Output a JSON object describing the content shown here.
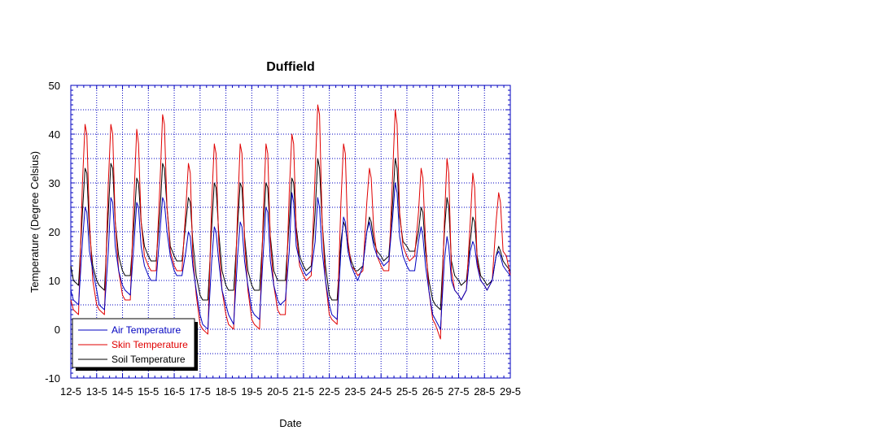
{
  "chart_data": {
    "type": "line",
    "title": "Duffield",
    "xlabel": "Date",
    "ylabel": "Temperature (Degree Celsius)",
    "ylim": [
      -10,
      50
    ],
    "yticks": [
      -10,
      0,
      10,
      20,
      30,
      40,
      50
    ],
    "xticks": [
      "12-5",
      "13-5",
      "14-5",
      "15-5",
      "16-5",
      "17-5",
      "18-5",
      "19-5",
      "20-5",
      "21-5",
      "22-5",
      "23-5",
      "24-5",
      "25-5",
      "26-5",
      "27-5",
      "28-5",
      "29-5"
    ],
    "grid": true,
    "legend_position": "bottom-left",
    "x_unit": "day index from 12-5 (0 = 12-5, 17 = 29-5)",
    "series": [
      {
        "name": "Air Temperature",
        "color": "#0000c0",
        "x": [
          0,
          0.1,
          0.3,
          0.45,
          0.55,
          0.62,
          0.72,
          0.85,
          1.0,
          1.1,
          1.3,
          1.45,
          1.55,
          1.62,
          1.72,
          1.85,
          2.0,
          2.1,
          2.3,
          2.45,
          2.55,
          2.62,
          2.72,
          2.85,
          3.0,
          3.1,
          3.3,
          3.45,
          3.55,
          3.62,
          3.72,
          3.85,
          4.0,
          4.1,
          4.3,
          4.45,
          4.55,
          4.62,
          4.72,
          4.85,
          5.0,
          5.1,
          5.3,
          5.45,
          5.55,
          5.62,
          5.72,
          5.85,
          6.0,
          6.1,
          6.3,
          6.45,
          6.55,
          6.62,
          6.72,
          6.85,
          7.0,
          7.1,
          7.3,
          7.45,
          7.55,
          7.62,
          7.72,
          7.85,
          8.0,
          8.1,
          8.3,
          8.45,
          8.55,
          8.62,
          8.72,
          8.85,
          9.0,
          9.1,
          9.3,
          9.45,
          9.55,
          9.62,
          9.72,
          9.85,
          10.0,
          10.1,
          10.3,
          10.45,
          10.55,
          10.62,
          10.72,
          10.85,
          11.0,
          11.1,
          11.3,
          11.45,
          11.55,
          11.62,
          11.72,
          11.85,
          12.0,
          12.1,
          12.3,
          12.45,
          12.55,
          12.62,
          12.72,
          12.85,
          13.0,
          13.1,
          13.3,
          13.45,
          13.55,
          13.62,
          13.72,
          13.85,
          14.0,
          14.1,
          14.3,
          14.45,
          14.55,
          14.62,
          14.72,
          14.85,
          15.0,
          15.1,
          15.3,
          15.45,
          15.55,
          15.62,
          15.72,
          15.85,
          16.0,
          16.1,
          16.3,
          16.45,
          16.55,
          16.62,
          16.72,
          16.85,
          17.0
        ],
        "y": [
          8,
          6,
          5,
          18,
          25,
          24,
          16,
          12,
          8,
          5,
          4,
          16,
          27,
          26,
          17,
          12,
          9,
          8,
          7,
          18,
          26,
          25,
          17,
          13,
          11,
          10,
          10,
          20,
          27,
          26,
          20,
          15,
          12,
          11,
          11,
          16,
          20,
          19,
          13,
          8,
          3,
          1,
          0,
          14,
          21,
          20,
          14,
          8,
          5,
          3,
          1,
          15,
          22,
          21,
          14,
          9,
          4,
          3,
          2,
          16,
          25,
          24,
          14,
          9,
          6,
          5,
          6,
          16,
          28,
          26,
          17,
          14,
          12,
          11,
          12,
          18,
          27,
          25,
          16,
          10,
          5,
          3,
          2,
          16,
          23,
          22,
          16,
          13,
          11,
          10,
          13,
          20,
          22,
          20,
          17,
          15,
          14,
          13,
          14,
          23,
          30,
          28,
          19,
          15,
          13,
          12,
          12,
          18,
          21,
          19,
          13,
          8,
          3,
          2,
          0,
          14,
          19,
          17,
          10,
          8,
          7,
          6,
          8,
          16,
          18,
          17,
          13,
          10,
          9,
          8,
          10,
          15,
          16,
          15,
          13,
          12,
          11
        ]
      },
      {
        "name": "Skin Temperature",
        "color": "#e00000",
        "x": [
          0,
          0.1,
          0.3,
          0.45,
          0.55,
          0.62,
          0.72,
          0.85,
          1.0,
          1.1,
          1.3,
          1.45,
          1.55,
          1.62,
          1.72,
          1.85,
          2.0,
          2.1,
          2.3,
          2.45,
          2.55,
          2.62,
          2.72,
          2.85,
          3.0,
          3.1,
          3.3,
          3.45,
          3.55,
          3.62,
          3.72,
          3.85,
          4.0,
          4.1,
          4.3,
          4.45,
          4.55,
          4.62,
          4.72,
          4.85,
          5.0,
          5.1,
          5.3,
          5.45,
          5.55,
          5.62,
          5.72,
          5.85,
          6.0,
          6.1,
          6.3,
          6.45,
          6.55,
          6.62,
          6.72,
          6.85,
          7.0,
          7.1,
          7.3,
          7.45,
          7.55,
          7.62,
          7.72,
          7.85,
          8.0,
          8.1,
          8.3,
          8.45,
          8.55,
          8.62,
          8.72,
          8.85,
          9.0,
          9.1,
          9.3,
          9.45,
          9.55,
          9.62,
          9.72,
          9.85,
          10.0,
          10.1,
          10.3,
          10.45,
          10.55,
          10.62,
          10.72,
          10.85,
          11.0,
          11.1,
          11.3,
          11.45,
          11.55,
          11.62,
          11.72,
          11.85,
          12.0,
          12.1,
          12.3,
          12.45,
          12.55,
          12.62,
          12.72,
          12.85,
          13.0,
          13.1,
          13.3,
          13.45,
          13.55,
          13.62,
          13.72,
          13.85,
          14.0,
          14.1,
          14.3,
          14.45,
          14.55,
          14.62,
          14.72,
          14.85,
          15.0,
          15.1,
          15.3,
          15.45,
          15.55,
          15.62,
          15.72,
          15.85,
          16.0,
          16.1,
          16.3,
          16.45,
          16.55,
          16.62,
          16.72,
          16.85,
          17.0
        ],
        "y": [
          6,
          4,
          3,
          30,
          42,
          40,
          22,
          10,
          5,
          4,
          3,
          30,
          42,
          40,
          22,
          12,
          7,
          6,
          6,
          28,
          41,
          38,
          22,
          15,
          13,
          12,
          12,
          30,
          44,
          42,
          25,
          16,
          13,
          12,
          12,
          25,
          34,
          32,
          15,
          7,
          1,
          0,
          -1,
          26,
          38,
          36,
          18,
          8,
          3,
          1,
          0,
          24,
          38,
          36,
          18,
          8,
          2,
          1,
          0,
          24,
          38,
          36,
          18,
          9,
          4,
          3,
          3,
          28,
          40,
          38,
          20,
          13,
          11,
          10,
          11,
          32,
          46,
          44,
          22,
          10,
          3,
          2,
          1,
          26,
          38,
          36,
          18,
          13,
          12,
          11,
          12,
          26,
          33,
          31,
          20,
          15,
          13,
          12,
          12,
          32,
          45,
          42,
          24,
          17,
          15,
          14,
          15,
          24,
          33,
          31,
          18,
          8,
          2,
          1,
          -2,
          22,
          35,
          32,
          12,
          8,
          7,
          6,
          8,
          22,
          32,
          29,
          14,
          10,
          9,
          8,
          10,
          22,
          28,
          26,
          16,
          15,
          11
        ]
      },
      {
        "name": "Soil Temperature",
        "color": "#000000",
        "x": [
          0,
          0.1,
          0.3,
          0.45,
          0.55,
          0.62,
          0.72,
          0.85,
          1.0,
          1.1,
          1.3,
          1.45,
          1.55,
          1.62,
          1.72,
          1.85,
          2.0,
          2.1,
          2.3,
          2.45,
          2.55,
          2.62,
          2.72,
          2.85,
          3.0,
          3.1,
          3.3,
          3.45,
          3.55,
          3.62,
          3.72,
          3.85,
          4.0,
          4.1,
          4.3,
          4.45,
          4.55,
          4.62,
          4.72,
          4.85,
          5.0,
          5.1,
          5.3,
          5.45,
          5.55,
          5.62,
          5.72,
          5.85,
          6.0,
          6.1,
          6.3,
          6.45,
          6.55,
          6.62,
          6.72,
          6.85,
          7.0,
          7.1,
          7.3,
          7.45,
          7.55,
          7.62,
          7.72,
          7.85,
          8.0,
          8.1,
          8.3,
          8.45,
          8.55,
          8.62,
          8.72,
          8.85,
          9.0,
          9.1,
          9.3,
          9.45,
          9.55,
          9.62,
          9.72,
          9.85,
          10.0,
          10.1,
          10.3,
          10.45,
          10.55,
          10.62,
          10.72,
          10.85,
          11.0,
          11.1,
          11.3,
          11.45,
          11.55,
          11.62,
          11.72,
          11.85,
          12.0,
          12.1,
          12.3,
          12.45,
          12.55,
          12.62,
          12.72,
          12.85,
          13.0,
          13.1,
          13.3,
          13.45,
          13.55,
          13.62,
          13.72,
          13.85,
          14.0,
          14.1,
          14.3,
          14.45,
          14.55,
          14.62,
          14.72,
          14.85,
          15.0,
          15.1,
          15.3,
          15.45,
          15.55,
          15.62,
          15.72,
          15.85,
          16.0,
          16.1,
          16.3,
          16.45,
          16.55,
          16.62,
          16.72,
          16.85,
          17.0
        ],
        "y": [
          13,
          10,
          9,
          24,
          33,
          32,
          20,
          13,
          10,
          9,
          8,
          24,
          34,
          33,
          22,
          15,
          12,
          11,
          11,
          22,
          31,
          30,
          22,
          17,
          15,
          14,
          14,
          24,
          34,
          33,
          25,
          17,
          15,
          14,
          14,
          22,
          27,
          26,
          18,
          11,
          7,
          6,
          6,
          21,
          30,
          29,
          20,
          12,
          9,
          8,
          8,
          21,
          30,
          29,
          19,
          12,
          9,
          8,
          8,
          21,
          30,
          29,
          19,
          12,
          10,
          10,
          10,
          22,
          31,
          30,
          21,
          15,
          13,
          12,
          13,
          24,
          35,
          33,
          22,
          13,
          7,
          6,
          6,
          18,
          22,
          21,
          17,
          14,
          12,
          12,
          13,
          20,
          23,
          22,
          18,
          16,
          15,
          14,
          15,
          26,
          35,
          33,
          23,
          18,
          17,
          16,
          16,
          20,
          25,
          24,
          16,
          10,
          6,
          5,
          4,
          20,
          27,
          25,
          14,
          11,
          10,
          9,
          10,
          18,
          23,
          22,
          15,
          11,
          10,
          9,
          10,
          15,
          17,
          16,
          14,
          13,
          12
        ]
      }
    ]
  }
}
